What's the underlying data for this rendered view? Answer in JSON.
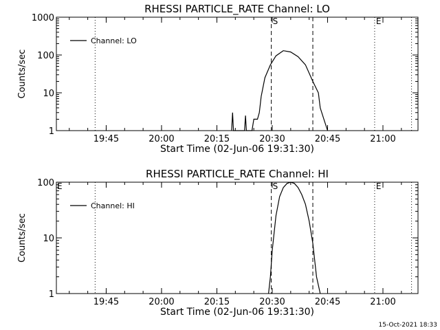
{
  "footer": {
    "timestamp": "15-Oct-2021 18:33"
  },
  "chart_data": [
    {
      "type": "line",
      "scale_y": "log",
      "title": "RHESSI PARTICLE_RATE Channel: LO",
      "xlabel": "Start Time (02-Jun-06 19:31:30)",
      "ylabel": "Counts/sec",
      "legend": {
        "placement": "top-left",
        "entries": [
          "Channel: LO"
        ]
      },
      "xlim": [
        "19:31:30",
        "21:09:30"
      ],
      "ylim": [
        1,
        1000
      ],
      "x_ticks": [
        "19:45",
        "20:00",
        "20:15",
        "20:30",
        "20:45",
        "21:00"
      ],
      "y_ticks": [
        1,
        10,
        100,
        1000
      ],
      "y_tick_labels": [
        "1",
        "10",
        "100",
        "1000"
      ],
      "series": [
        {
          "name": "Channel: LO",
          "x": [
            "20:19:00",
            "20:19:15",
            "20:19:30",
            "20:22:30",
            "20:22:45",
            "20:23:00",
            "20:24:30",
            "20:25:00",
            "20:26:00",
            "20:26:30",
            "20:27:00",
            "20:28:00",
            "20:29:30",
            "20:31:00",
            "20:33:00",
            "20:35:00",
            "20:37:00",
            "20:39:00",
            "20:41:00",
            "20:42:30",
            "20:43:00",
            "20:44:00",
            "20:45:00"
          ],
          "values": [
            1,
            3,
            1,
            1,
            2.5,
            1,
            1,
            2,
            2,
            3,
            8,
            25,
            55,
            95,
            130,
            120,
            90,
            55,
            20,
            10,
            4,
            2,
            1
          ]
        }
      ],
      "markers": [
        {
          "label": "S",
          "time": "20:29:45",
          "style": "dashed"
        },
        {
          "label": "",
          "time": "20:41:00",
          "style": "dashed"
        },
        {
          "label": "E",
          "time": "20:57:45",
          "style": "dotted"
        },
        {
          "label": "",
          "time": "19:42:00",
          "style": "dotted"
        },
        {
          "label": "",
          "time": "21:07:45",
          "style": "dotted"
        }
      ]
    },
    {
      "type": "line",
      "scale_y": "log",
      "title": "RHESSI PARTICLE_RATE Channel: HI",
      "xlabel": "Start Time (02-Jun-06 19:31:30)",
      "ylabel": "Counts/sec",
      "legend": {
        "placement": "top-left",
        "entries": [
          "Channel: HI"
        ]
      },
      "xlim": [
        "19:31:30",
        "21:09:30"
      ],
      "ylim": [
        1,
        100
      ],
      "x_ticks": [
        "19:45",
        "20:00",
        "20:15",
        "20:30",
        "20:45",
        "21:00"
      ],
      "y_ticks": [
        1,
        10,
        100
      ],
      "y_tick_labels": [
        "1",
        "10",
        "100"
      ],
      "series": [
        {
          "name": "Channel: HI",
          "x": [
            "20:29:00",
            "20:29:30",
            "20:30:00",
            "20:31:00",
            "20:32:00",
            "20:33:00",
            "20:34:00",
            "20:35:00",
            "20:36:00",
            "20:37:00",
            "20:38:00",
            "20:39:00",
            "20:40:00",
            "20:41:00",
            "20:41:30",
            "20:42:00",
            "20:43:00"
          ],
          "values": [
            1,
            2,
            6,
            25,
            55,
            80,
            95,
            100,
            95,
            80,
            60,
            40,
            20,
            8,
            4,
            2,
            1
          ]
        }
      ],
      "markers": [
        {
          "label": "S",
          "time": "20:29:45",
          "style": "dashed"
        },
        {
          "label": "",
          "time": "20:41:00",
          "style": "dashed"
        },
        {
          "label": "E",
          "time": "20:57:45",
          "style": "dotted"
        },
        {
          "label": "",
          "time": "19:42:00",
          "style": "dotted"
        },
        {
          "label": "",
          "time": "21:07:45",
          "style": "dotted"
        }
      ],
      "edge_label_left": "E"
    }
  ]
}
